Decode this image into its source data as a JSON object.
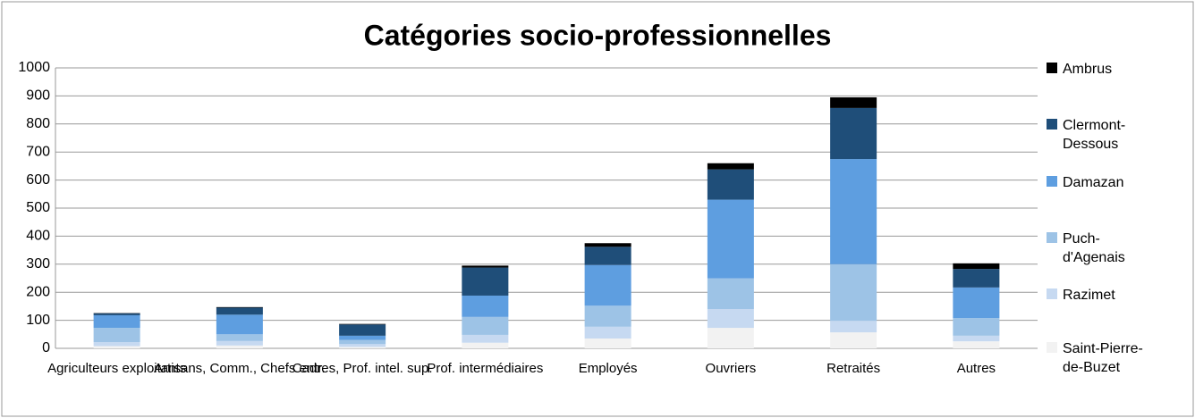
{
  "chart_data": {
    "type": "bar",
    "stacked": true,
    "title": "Catégories socio-professionnelles",
    "categories": [
      "Agriculteurs exploitants",
      "Artisans, Comm., Chefs entr.",
      "Cadres, Prof. intel. sup.",
      "Prof. intermédiaires",
      "Employés",
      "Ouvriers",
      "Retraités",
      "Autres"
    ],
    "series": [
      {
        "name": "Saint-Pierre-de-Buzet",
        "color": "#f2f2f2",
        "values": [
          8,
          10,
          5,
          20,
          35,
          73,
          57,
          25
        ]
      },
      {
        "name": "Razimet",
        "color": "#c6d9f1",
        "values": [
          14,
          16,
          10,
          28,
          42,
          67,
          41,
          20
        ]
      },
      {
        "name": "Puch-d'Agenais",
        "color": "#9dc3e6",
        "values": [
          51,
          24,
          15,
          64,
          75,
          110,
          202,
          63
        ]
      },
      {
        "name": "Damazan",
        "color": "#5e9ee0",
        "values": [
          45,
          70,
          15,
          76,
          145,
          280,
          375,
          109
        ]
      },
      {
        "name": "Clermont-Dessous",
        "color": "#1f4e79",
        "values": [
          7,
          25,
          40,
          100,
          65,
          108,
          182,
          66
        ]
      },
      {
        "name": "Ambrus",
        "color": "#000000",
        "values": [
          1,
          2,
          2,
          7,
          13,
          22,
          38,
          20
        ]
      }
    ],
    "ylim": [
      0,
      1000
    ],
    "yticks": [
      0,
      100,
      200,
      300,
      400,
      500,
      600,
      700,
      800,
      900,
      1000
    ],
    "grid": true,
    "legend": "right"
  }
}
